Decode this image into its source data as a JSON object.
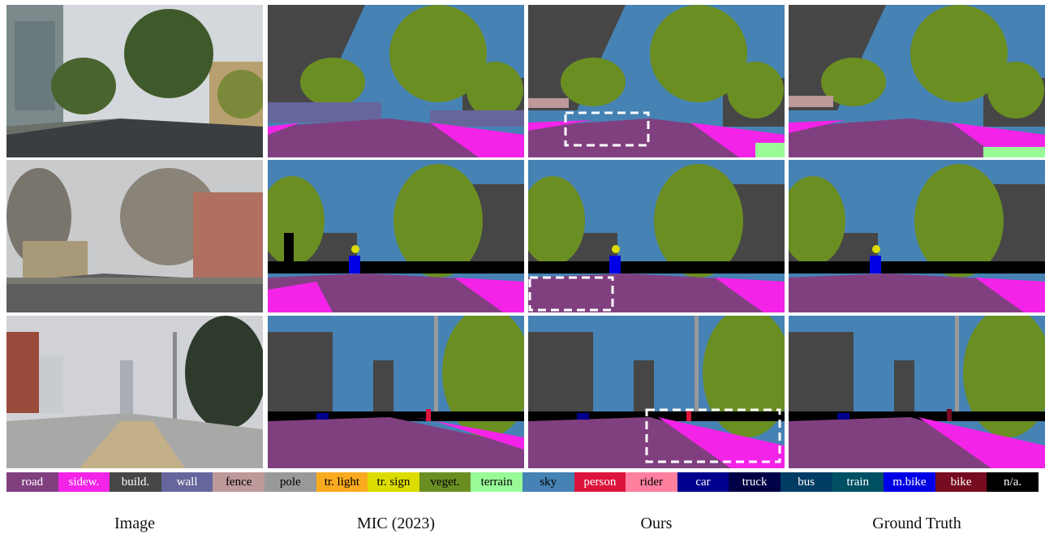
{
  "captions": [
    "Image",
    "MIC (2023)",
    "Ours",
    "Ground Truth"
  ],
  "legend": [
    {
      "label": "road",
      "color": "#804080",
      "text": "#ffffff"
    },
    {
      "label": "sidew.",
      "color": "#f423e8",
      "text": "#ffffff"
    },
    {
      "label": "build.",
      "color": "#464646",
      "text": "#ffffff"
    },
    {
      "label": "wall",
      "color": "#66669c",
      "text": "#ffffff"
    },
    {
      "label": "fence",
      "color": "#be9999",
      "text": "#000000"
    },
    {
      "label": "pole",
      "color": "#999999",
      "text": "#000000"
    },
    {
      "label": "tr. light",
      "color": "#faaa1e",
      "text": "#000000"
    },
    {
      "label": "tr. sign",
      "color": "#dcdc00",
      "text": "#000000"
    },
    {
      "label": "veget.",
      "color": "#6b8e23",
      "text": "#000000"
    },
    {
      "label": "terrain",
      "color": "#98fb98",
      "text": "#000000"
    },
    {
      "label": "sky",
      "color": "#4682b4",
      "text": "#000000"
    },
    {
      "label": "person",
      "color": "#dc143c",
      "text": "#ffffff"
    },
    {
      "label": "rider",
      "color": "#ff7f9f",
      "text": "#000000"
    },
    {
      "label": "car",
      "color": "#00008e",
      "text": "#ffffff"
    },
    {
      "label": "truck",
      "color": "#000046",
      "text": "#ffffff"
    },
    {
      "label": "bus",
      "color": "#003c64",
      "text": "#ffffff"
    },
    {
      "label": "train",
      "color": "#005064",
      "text": "#ffffff"
    },
    {
      "label": "m.bike",
      "color": "#0000e6",
      "text": "#ffffff"
    },
    {
      "label": "bike",
      "color": "#770b20",
      "text": "#ffffff"
    },
    {
      "label": "n/a.",
      "color": "#000000",
      "text": "#ffffff"
    }
  ]
}
